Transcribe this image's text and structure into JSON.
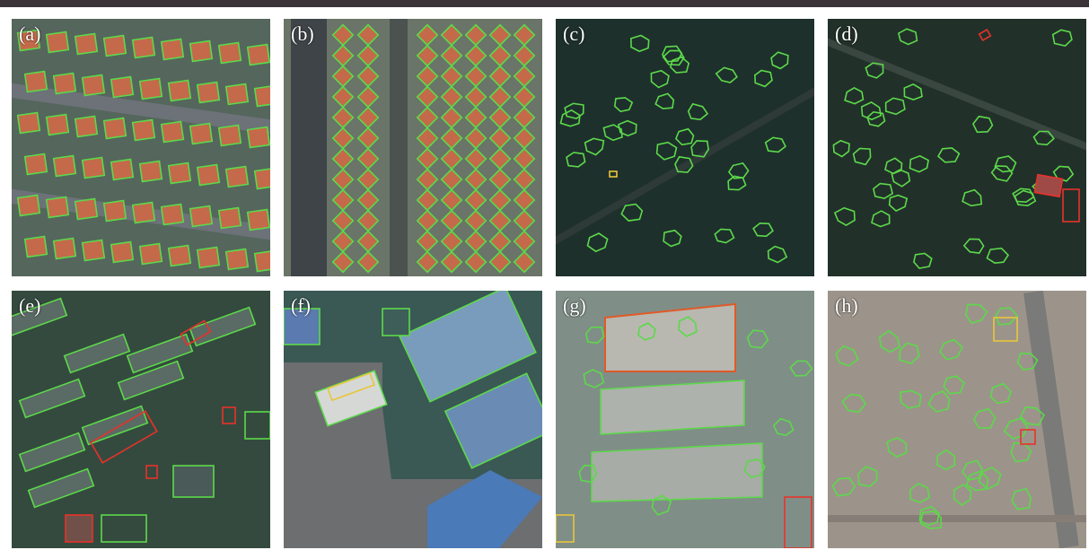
{
  "panels": [
    {
      "label": "(a)"
    },
    {
      "label": "(b)"
    },
    {
      "label": "(c)"
    },
    {
      "label": "(d)"
    },
    {
      "label": "(e)"
    },
    {
      "label": "(f)"
    },
    {
      "label": "(g)"
    },
    {
      "label": "(h)"
    }
  ],
  "colors": {
    "correct_outline": "#5cd94a",
    "false_outline": "#e8322a",
    "partial_outline": "#e8c63a",
    "rooftop": "#c46a4a"
  }
}
